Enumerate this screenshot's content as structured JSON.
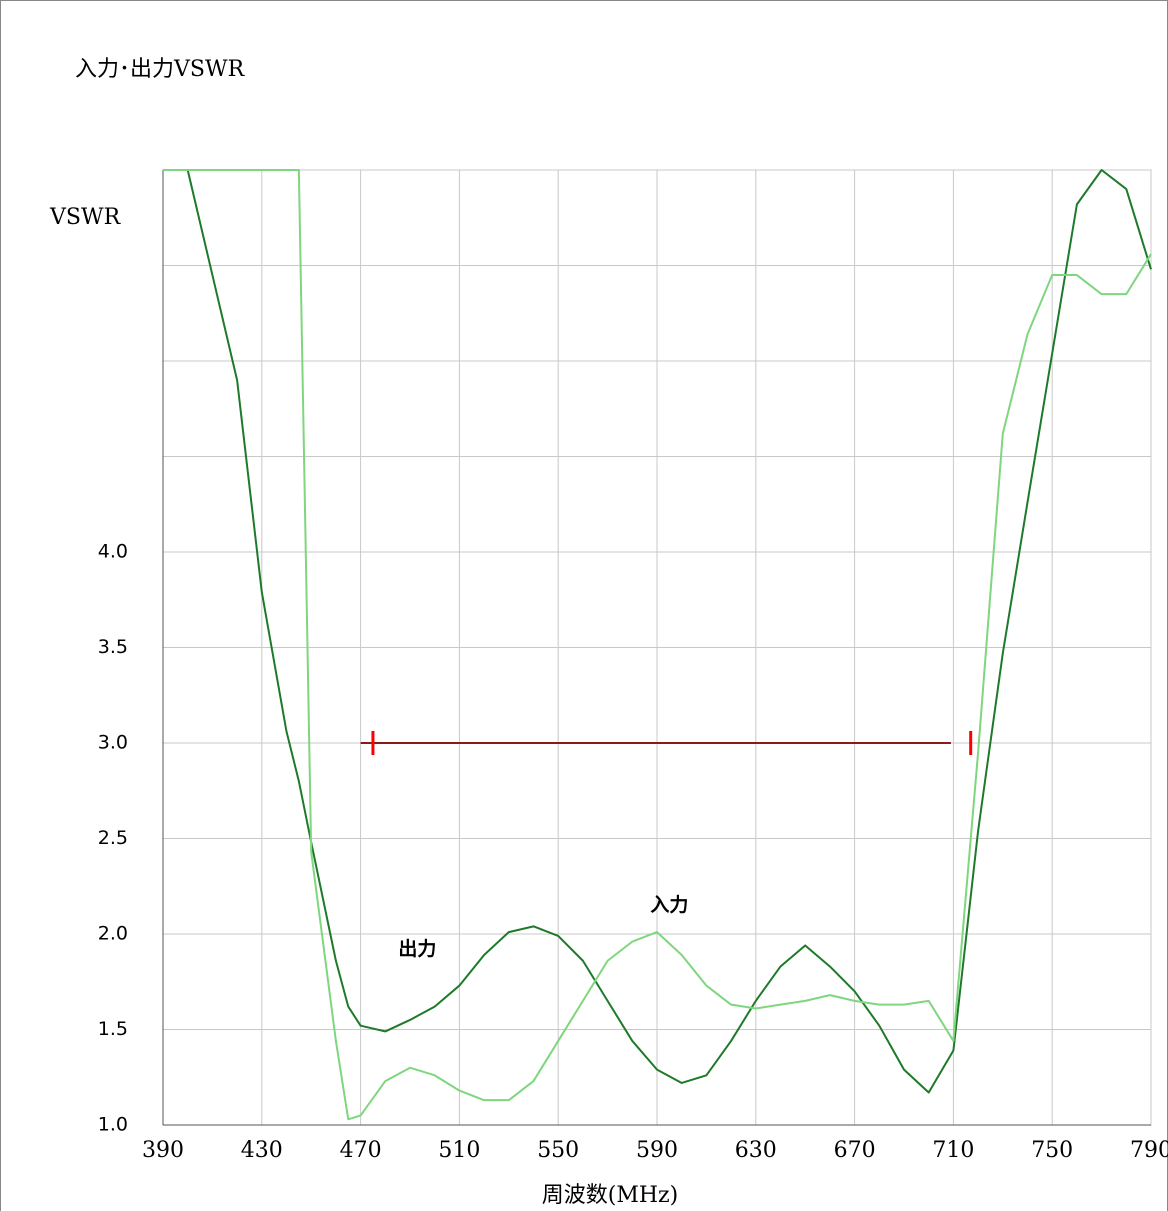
{
  "chart_data": {
    "type": "line",
    "title": "入力･出力VSWR",
    "ylabel": "VSWR",
    "xlabel": "周波数(MHz)",
    "x": [
      390,
      400,
      410,
      420,
      430,
      440,
      445,
      450,
      460,
      465,
      470,
      480,
      490,
      500,
      510,
      520,
      530,
      540,
      550,
      560,
      570,
      580,
      590,
      600,
      610,
      620,
      630,
      640,
      650,
      660,
      670,
      680,
      690,
      700,
      710,
      720,
      730,
      740,
      750,
      760,
      770,
      780,
      790
    ],
    "series": [
      {
        "name": "出力",
        "color": "#1e7a2a",
        "values": [
          6,
          6,
          5.45,
          4.9,
          3.79,
          3.06,
          2.8,
          2.48,
          1.86,
          1.62,
          1.52,
          1.49,
          1.55,
          1.62,
          1.73,
          1.89,
          2.01,
          2.04,
          1.99,
          1.86,
          1.65,
          1.44,
          1.29,
          1.22,
          1.26,
          1.44,
          1.65,
          1.83,
          1.94,
          1.83,
          1.7,
          1.52,
          1.29,
          1.17,
          1.39,
          2.54,
          3.47,
          4.26,
          5.04,
          5.82,
          6,
          5.9,
          5.48
        ]
      },
      {
        "name": "入力",
        "color": "#7ed67e",
        "values": [
          6,
          6,
          6,
          6,
          6,
          6,
          6,
          2.43,
          1.44,
          1.03,
          1.05,
          1.23,
          1.3,
          1.26,
          1.18,
          1.13,
          1.13,
          1.23,
          1.44,
          1.65,
          1.86,
          1.96,
          2.01,
          1.89,
          1.73,
          1.63,
          1.61,
          1.63,
          1.65,
          1.68,
          1.65,
          1.63,
          1.63,
          1.65,
          1.44,
          2.95,
          4.62,
          5.14,
          5.45,
          5.45,
          5.35,
          5.35,
          5.56
        ]
      }
    ],
    "series_label_positions": [
      [
        493,
        1.92
      ],
      [
        595,
        2.15
      ]
    ],
    "band": {
      "x": [
        470,
        709
      ],
      "y": 3.0,
      "color": "#8b1a1a",
      "markers": [
        475,
        717
      ],
      "marker_color": "#ff0000"
    },
    "xlim": [
      390,
      790
    ],
    "xticks": [
      390,
      430,
      470,
      510,
      550,
      590,
      630,
      670,
      710,
      750,
      790
    ],
    "ylim": [
      1,
      6
    ],
    "yticks": [
      {
        "value": 1,
        "label": "1.0"
      },
      {
        "value": 1.5,
        "label": "1.5"
      },
      {
        "value": 2,
        "label": "2.0"
      },
      {
        "value": 2.5,
        "label": "2.5"
      },
      {
        "value": 3,
        "label": "3.0"
      },
      {
        "value": 3.5,
        "label": "3.5"
      },
      {
        "value": 4,
        "label": "4.0"
      },
      {
        "value": 4.5,
        "label": null
      },
      {
        "value": 5,
        "label": null
      },
      {
        "value": 5.5,
        "label": null
      },
      {
        "value": 6,
        "label": null
      }
    ],
    "grid": true
  }
}
